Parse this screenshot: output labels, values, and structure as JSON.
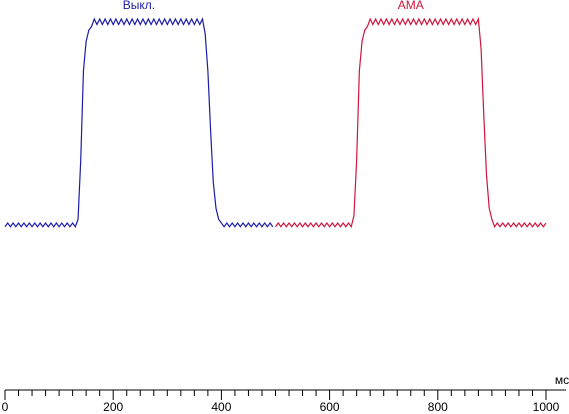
{
  "chart_data": {
    "type": "line",
    "x_label": "мс",
    "xlim": [
      0,
      1000
    ],
    "xticks": [
      0,
      200,
      400,
      600,
      800,
      1000
    ],
    "ylim": [
      0,
      100
    ],
    "series": [
      {
        "name": "Выкл.",
        "color": "#1c1ca8",
        "x": [
          0,
          5,
          10,
          15,
          20,
          25,
          30,
          35,
          40,
          45,
          50,
          55,
          60,
          65,
          70,
          75,
          80,
          85,
          90,
          95,
          100,
          105,
          110,
          115,
          120,
          125,
          130,
          135,
          140,
          145,
          150,
          155,
          160,
          165,
          170,
          175,
          180,
          185,
          190,
          195,
          200,
          205,
          210,
          215,
          220,
          225,
          230,
          235,
          240,
          245,
          250,
          255,
          260,
          265,
          270,
          275,
          280,
          285,
          290,
          295,
          300,
          305,
          310,
          315,
          320,
          325,
          330,
          335,
          340,
          345,
          350,
          355,
          360,
          365,
          370,
          375,
          380,
          385,
          390,
          395,
          400,
          405,
          410,
          415,
          420,
          425,
          430,
          435,
          440,
          445,
          450,
          455,
          460,
          465,
          470,
          475,
          480,
          485,
          490,
          495
        ],
        "values": [
          44,
          45,
          44,
          45,
          44,
          45,
          44,
          45,
          44,
          45,
          44,
          45,
          44,
          45,
          44,
          45,
          44,
          45,
          44,
          45,
          44,
          45,
          44,
          45,
          44,
          45,
          44,
          46,
          62,
          86,
          94,
          97,
          98,
          100,
          98.5,
          100,
          98.5,
          100,
          98.5,
          100,
          98.5,
          100,
          98.5,
          100,
          98.5,
          100,
          98.5,
          100,
          98.5,
          100,
          98.5,
          100,
          98.5,
          100,
          98.5,
          100,
          98.5,
          100,
          98.5,
          100,
          98.5,
          100,
          98.5,
          100,
          98.5,
          100,
          98.5,
          100,
          98.5,
          100,
          98.5,
          100,
          98.5,
          100,
          96,
          86,
          70,
          56,
          49,
          46,
          45,
          44,
          45,
          44,
          45,
          44,
          45,
          44,
          45,
          44,
          45,
          44,
          45,
          44,
          45,
          44,
          45,
          44,
          45,
          44
        ]
      },
      {
        "name": "AMA",
        "color": "#d0143c",
        "x": [
          500,
          505,
          510,
          515,
          520,
          525,
          530,
          535,
          540,
          545,
          550,
          555,
          560,
          565,
          570,
          575,
          580,
          585,
          590,
          595,
          600,
          605,
          610,
          615,
          620,
          625,
          630,
          635,
          640,
          645,
          650,
          655,
          660,
          665,
          670,
          675,
          680,
          685,
          690,
          695,
          700,
          705,
          710,
          715,
          720,
          725,
          730,
          735,
          740,
          745,
          750,
          755,
          760,
          765,
          770,
          775,
          780,
          785,
          790,
          795,
          800,
          805,
          810,
          815,
          820,
          825,
          830,
          835,
          840,
          845,
          850,
          855,
          860,
          865,
          870,
          875,
          880,
          885,
          890,
          895,
          900,
          905,
          910,
          915,
          920,
          925,
          930,
          935,
          940,
          945,
          950,
          955,
          960,
          965,
          970,
          975,
          980,
          985,
          990,
          995,
          1000
        ],
        "values": [
          44,
          45,
          44,
          45,
          44,
          45,
          44,
          45,
          44,
          45,
          44,
          45,
          44,
          45,
          44,
          45,
          44,
          45,
          44,
          45,
          44,
          45,
          44,
          45,
          44,
          45,
          44,
          45,
          44,
          47,
          62,
          86,
          94,
          97,
          98,
          100,
          98.5,
          100,
          98.5,
          100,
          98.5,
          100,
          98.5,
          100,
          98.5,
          100,
          98.5,
          100,
          98.5,
          100,
          98.5,
          100,
          98.5,
          100,
          98.5,
          100,
          98.5,
          100,
          98.5,
          100,
          98.5,
          100,
          98.5,
          100,
          98.5,
          100,
          98.5,
          100,
          98.5,
          100,
          98.5,
          100,
          98.5,
          100,
          98.5,
          100,
          92,
          74,
          58,
          49,
          46,
          44,
          45,
          44,
          45,
          44,
          45,
          44,
          45,
          44,
          45,
          44,
          45,
          44,
          45,
          44,
          45,
          44,
          45,
          44,
          45
        ]
      }
    ]
  }
}
